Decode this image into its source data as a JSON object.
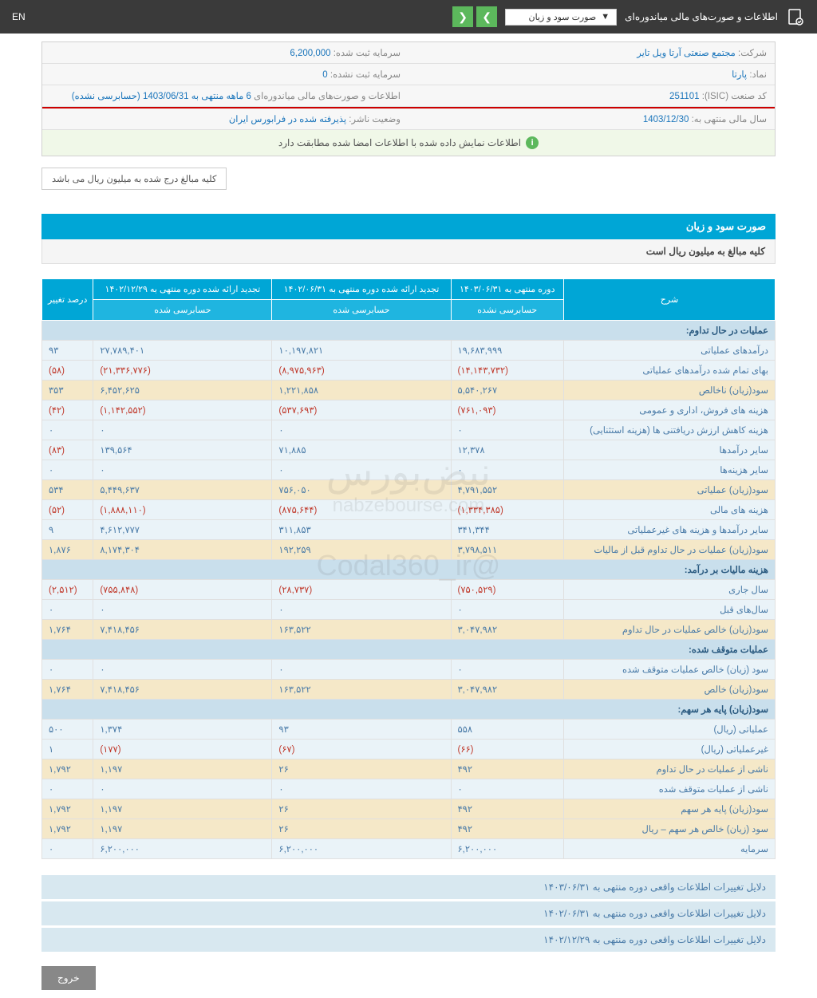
{
  "topbar": {
    "title": "اطلاعات و صورت‌های مالی میاندوره‌ای",
    "dropdown": "صورت سود و زیان",
    "lang": "EN"
  },
  "info": {
    "company_lbl": "شرکت:",
    "company_val": "مجتمع صنعتی آرتا ویل تایر",
    "capital_reg_lbl": "سرمایه ثبت شده:",
    "capital_reg_val": "6,200,000",
    "symbol_lbl": "نماد:",
    "symbol_val": "پارتا",
    "capital_unreg_lbl": "سرمایه ثبت نشده:",
    "capital_unreg_val": "0",
    "isic_lbl": "کد صنعت (ISIC):",
    "isic_val": "251101",
    "report_lbl": "اطلاعات و صورت‌های مالی میاندوره‌ای",
    "report_val": " 6 ماهه منتهی به 1403/06/31 (حسابرسی نشده)",
    "fy_lbl": "سال مالی منتهی به:",
    "fy_val": "1403/12/30",
    "status_lbl": "وضعیت ناشر:",
    "status_val": "پذیرفته شده در فرابورس ایران"
  },
  "status_msg": "اطلاعات نمایش داده شده با اطلاعات امضا شده مطابقت دارد",
  "note": "کلیه مبالغ درج شده به میلیون ریال می باشد",
  "section_title": "صورت سود و زیان",
  "section_sub": "کلیه مبالغ به میلیون ریال است",
  "headers": {
    "desc": "شرح",
    "c1": "دوره منتهی به ۱۴۰۳/۰۶/۳۱",
    "c2": "تجدید ارائه شده دوره منتهی به ۱۴۰۲/۰۶/۳۱",
    "c3": "تجدید ارائه شده دوره منتهی به ۱۴۰۲/۱۲/۲۹",
    "c4": "درصد تغییر",
    "s1": "حسابرسی نشده",
    "s2": "حسابرسی شده",
    "s3": "حسابرسی شده"
  },
  "rows": [
    {
      "type": "hdr",
      "desc": "عملیات در حال تداوم:"
    },
    {
      "type": "a",
      "desc": "درآمدهای عملیاتی",
      "v1": "۱۹,۶۸۳,۹۹۹",
      "v2": "۱۰,۱۹۷,۸۲۱",
      "v3": "۲۷,۷۸۹,۴۰۱",
      "v4": "۹۳"
    },
    {
      "type": "a",
      "desc": "بهای تمام شده درآمدهای عملیاتی",
      "v1": "(۱۴,۱۴۳,۷۳۲)",
      "n1": 1,
      "v2": "(۸,۹۷۵,۹۶۳)",
      "n2": 1,
      "v3": "(۲۱,۳۳۶,۷۷۶)",
      "n3": 1,
      "v4": "(۵۸)",
      "n4": 1
    },
    {
      "type": "b",
      "desc": "سود(زیان) ناخالص",
      "v1": "۵,۵۴۰,۲۶۷",
      "v2": "۱,۲۲۱,۸۵۸",
      "v3": "۶,۴۵۲,۶۲۵",
      "v4": "۳۵۳"
    },
    {
      "type": "a",
      "desc": "هزینه های فروش، اداری و عمومی",
      "v1": "(۷۶۱,۰۹۳)",
      "n1": 1,
      "v2": "(۵۳۷,۶۹۳)",
      "n2": 1,
      "v3": "(۱,۱۴۲,۵۵۲)",
      "n3": 1,
      "v4": "(۴۲)",
      "n4": 1
    },
    {
      "type": "a",
      "desc": "هزینه کاهش ارزش دریافتنی ها (هزینه استثنایی)",
      "v1": "۰",
      "v2": "۰",
      "v3": "۰",
      "v4": "۰"
    },
    {
      "type": "a",
      "desc": "سایر درآمدها",
      "v1": "۱۲,۳۷۸",
      "v2": "۷۱,۸۸۵",
      "v3": "۱۳۹,۵۶۴",
      "v4": "(۸۳)",
      "n4": 1
    },
    {
      "type": "a",
      "desc": "سایر هزینه‌ها",
      "v1": "۰",
      "v2": "۰",
      "v3": "۰",
      "v4": "۰"
    },
    {
      "type": "b",
      "desc": "سود(زیان) عملیاتی",
      "v1": "۴,۷۹۱,۵۵۲",
      "v2": "۷۵۶,۰۵۰",
      "v3": "۵,۴۴۹,۶۳۷",
      "v4": "۵۳۴"
    },
    {
      "type": "a",
      "desc": "هزینه های مالی",
      "v1": "(۱,۳۳۴,۳۸۵)",
      "n1": 1,
      "v2": "(۸۷۵,۶۴۴)",
      "n2": 1,
      "v3": "(۱,۸۸۸,۱۱۰)",
      "n3": 1,
      "v4": "(۵۲)",
      "n4": 1
    },
    {
      "type": "a",
      "desc": "سایر درآمدها و هزینه های غیرعملیاتی",
      "v1": "۳۴۱,۳۴۴",
      "v2": "۳۱۱,۸۵۳",
      "v3": "۴,۶۱۲,۷۷۷",
      "v4": "۹"
    },
    {
      "type": "b",
      "desc": "سود(زیان) عملیات در حال تداوم قبل از مالیات",
      "v1": "۳,۷۹۸,۵۱۱",
      "v2": "۱۹۲,۲۵۹",
      "v3": "۸,۱۷۴,۳۰۴",
      "v4": "۱,۸۷۶"
    },
    {
      "type": "hdr",
      "desc": "هزینه مالیات بر درآمد:"
    },
    {
      "type": "a",
      "desc": "سال جاری",
      "v1": "(۷۵۰,۵۲۹)",
      "n1": 1,
      "v2": "(۲۸,۷۳۷)",
      "n2": 1,
      "v3": "(۷۵۵,۸۴۸)",
      "n3": 1,
      "v4": "(۲,۵۱۲)",
      "n4": 1
    },
    {
      "type": "a",
      "desc": "سال‌های قبل",
      "v1": "۰",
      "v2": "۰",
      "v3": "۰",
      "v4": "۰"
    },
    {
      "type": "b",
      "desc": "سود(زیان) خالص عملیات در حال تداوم",
      "v1": "۳,۰۴۷,۹۸۲",
      "v2": "۱۶۳,۵۲۲",
      "v3": "۷,۴۱۸,۴۵۶",
      "v4": "۱,۷۶۴"
    },
    {
      "type": "hdr",
      "desc": "عملیات متوقف شده:"
    },
    {
      "type": "a",
      "desc": "سود (زیان) خالص عملیات متوقف شده",
      "v1": "۰",
      "v2": "۰",
      "v3": "۰",
      "v4": "۰"
    },
    {
      "type": "b",
      "desc": "سود(زیان) خالص",
      "v1": "۳,۰۴۷,۹۸۲",
      "v2": "۱۶۳,۵۲۲",
      "v3": "۷,۴۱۸,۴۵۶",
      "v4": "۱,۷۶۴"
    },
    {
      "type": "hdr",
      "desc": "سود(زیان) پایه هر سهم:"
    },
    {
      "type": "a",
      "desc": "عملیاتی (ریال)",
      "v1": "۵۵۸",
      "v2": "۹۳",
      "v3": "۱,۳۷۴",
      "v4": "۵۰۰"
    },
    {
      "type": "a",
      "desc": "غیرعملیاتی (ریال)",
      "v1": "(۶۶)",
      "n1": 1,
      "v2": "(۶۷)",
      "n2": 1,
      "v3": "(۱۷۷)",
      "n3": 1,
      "v4": "۱"
    },
    {
      "type": "b",
      "desc": "ناشی از عملیات در حال تداوم",
      "v1": "۴۹۲",
      "v2": "۲۶",
      "v3": "۱,۱۹۷",
      "v4": "۱,۷۹۲"
    },
    {
      "type": "a",
      "desc": "ناشی از عملیات متوقف شده",
      "v1": "۰",
      "v2": "۰",
      "v3": "۰",
      "v4": "۰"
    },
    {
      "type": "b",
      "desc": "سود(زیان) پایه هر سهم",
      "v1": "۴۹۲",
      "v2": "۲۶",
      "v3": "۱,۱۹۷",
      "v4": "۱,۷۹۲"
    },
    {
      "type": "b",
      "desc": "سود (زیان) خالص هر سهم – ریال",
      "v1": "۴۹۲",
      "v2": "۲۶",
      "v3": "۱,۱۹۷",
      "v4": "۱,۷۹۲"
    },
    {
      "type": "a",
      "desc": "سرمایه",
      "v1": "۶,۲۰۰,۰۰۰",
      "v2": "۶,۲۰۰,۰۰۰",
      "v3": "۶,۲۰۰,۰۰۰",
      "v4": "۰"
    }
  ],
  "footers": [
    "دلایل تغییرات اطلاعات واقعی دوره منتهی به ۱۴۰۳/۰۶/۳۱",
    "دلایل تغییرات اطلاعات واقعی دوره منتهی به ۱۴۰۲/۰۶/۳۱",
    "دلایل تغییرات اطلاعات واقعی دوره منتهی به ۱۴۰۲/۱۲/۲۹"
  ],
  "exit": "خروج",
  "watermark": "nabzebourse.com"
}
